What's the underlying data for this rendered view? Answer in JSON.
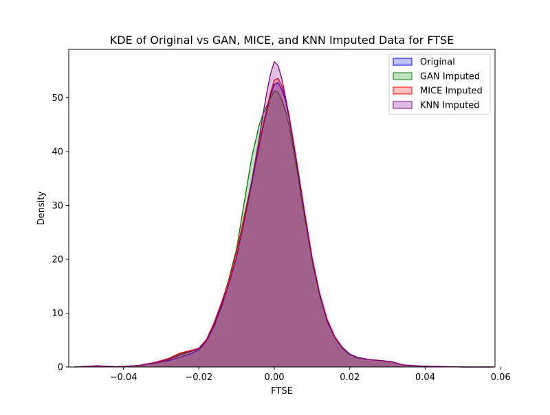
{
  "chart_data": {
    "type": "area",
    "title": "KDE of Original vs GAN, MICE, and KNN Imputed Data for FTSE",
    "xlabel": "FTSE",
    "ylabel": "Density",
    "xlim": [
      -0.0545,
      0.0585
    ],
    "ylim": [
      0,
      59
    ],
    "xticks": [
      -0.04,
      -0.02,
      0.0,
      0.02,
      0.04,
      0.06
    ],
    "xtick_labels": [
      "−0.04",
      "−0.02",
      "0.00",
      "0.02",
      "0.04",
      "0.06"
    ],
    "yticks": [
      0,
      10,
      20,
      30,
      40,
      50
    ],
    "ytick_labels": [
      "0",
      "10",
      "20",
      "30",
      "40",
      "50"
    ],
    "grid": false,
    "legend_position": "top-right",
    "x": [
      -0.053,
      -0.05,
      -0.047,
      -0.045,
      -0.042,
      -0.04,
      -0.036,
      -0.032,
      -0.028,
      -0.025,
      -0.022,
      -0.02,
      -0.018,
      -0.016,
      -0.014,
      -0.012,
      -0.01,
      -0.008,
      -0.006,
      -0.004,
      -0.003,
      -0.002,
      -0.001,
      0.0,
      0.001,
      0.002,
      0.003,
      0.004,
      0.006,
      0.008,
      0.01,
      0.012,
      0.014,
      0.016,
      0.018,
      0.02,
      0.022,
      0.025,
      0.028,
      0.031,
      0.034,
      0.038,
      0.042,
      0.046,
      0.05,
      0.054,
      0.058
    ],
    "series": [
      {
        "name": "Original",
        "color": "#0000ff",
        "fill": "rgba(0,0,255,0.25)",
        "values": [
          0.0,
          0.1,
          0.2,
          0.1,
          0.05,
          0.1,
          0.3,
          0.7,
          1.2,
          1.8,
          2.5,
          3.2,
          4.8,
          7.5,
          11.2,
          15.5,
          20.5,
          27.0,
          34.0,
          41.0,
          44.5,
          47.5,
          50.5,
          52.5,
          52.8,
          51.5,
          49.5,
          46.0,
          37.5,
          28.5,
          20.0,
          13.5,
          8.5,
          5.5,
          3.5,
          2.3,
          1.7,
          1.4,
          1.2,
          1.0,
          0.4,
          0.2,
          0.1,
          0.05,
          0.0,
          0.0,
          0.0
        ]
      },
      {
        "name": "GAN Imputed",
        "color": "#008000",
        "fill": "rgba(0,128,0,0.25)",
        "values": [
          0.0,
          0.1,
          0.2,
          0.1,
          0.05,
          0.1,
          0.3,
          0.8,
          1.5,
          2.4,
          3.0,
          3.5,
          5.0,
          8.0,
          11.8,
          16.5,
          22.0,
          30.5,
          39.0,
          45.0,
          47.0,
          48.5,
          50.0,
          51.3,
          51.0,
          49.5,
          47.5,
          44.5,
          36.5,
          28.0,
          19.8,
          13.3,
          8.6,
          5.5,
          3.6,
          2.4,
          1.8,
          1.4,
          1.2,
          1.0,
          0.4,
          0.2,
          0.1,
          0.05,
          0.0,
          0.0,
          0.0
        ]
      },
      {
        "name": "MICE Imputed",
        "color": "#ff0000",
        "fill": "rgba(255,0,0,0.25)",
        "values": [
          0.0,
          0.1,
          0.2,
          0.1,
          0.05,
          0.1,
          0.3,
          0.8,
          1.6,
          2.6,
          3.1,
          3.5,
          5.1,
          8.2,
          12.0,
          16.2,
          21.5,
          28.0,
          34.5,
          41.5,
          45.0,
          48.0,
          51.0,
          53.3,
          53.6,
          52.2,
          50.0,
          46.5,
          38.0,
          29.0,
          20.5,
          13.8,
          8.9,
          5.7,
          3.7,
          2.4,
          1.8,
          1.4,
          1.2,
          1.0,
          0.4,
          0.2,
          0.1,
          0.05,
          0.0,
          0.0,
          0.0
        ]
      },
      {
        "name": "KNN Imputed",
        "color": "#800080",
        "fill": "rgba(128,0,128,0.25)",
        "values": [
          0.0,
          0.1,
          0.25,
          0.15,
          0.05,
          0.1,
          0.3,
          0.7,
          1.4,
          2.2,
          2.9,
          3.4,
          4.9,
          7.8,
          11.5,
          15.5,
          20.5,
          27.0,
          34.5,
          42.5,
          47.0,
          51.0,
          54.5,
          56.7,
          56.0,
          53.5,
          50.0,
          46.0,
          37.5,
          28.5,
          20.0,
          13.5,
          8.6,
          5.5,
          3.6,
          2.4,
          1.8,
          1.4,
          1.2,
          1.0,
          0.4,
          0.2,
          0.1,
          0.05,
          0.0,
          0.0,
          0.0
        ]
      }
    ]
  }
}
